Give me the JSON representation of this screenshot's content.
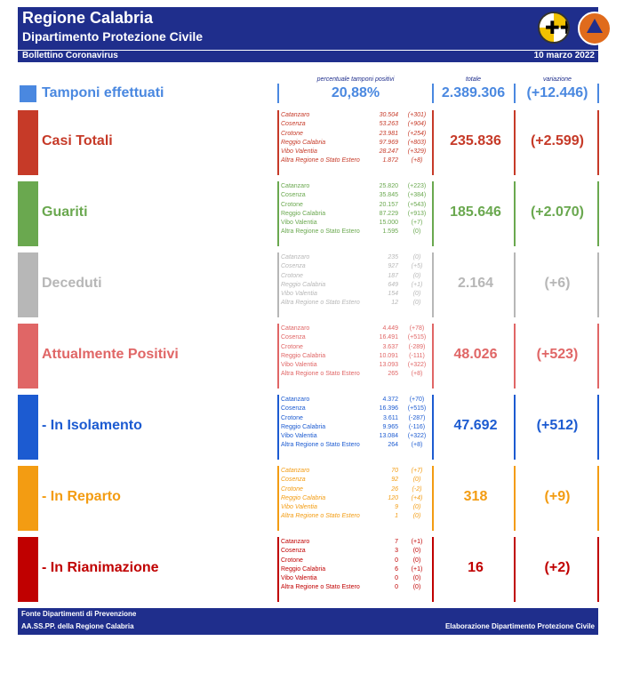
{
  "header": {
    "title": "Regione Calabria",
    "subtitle": "Dipartimento Protezione Civile",
    "bulletin": "Bollettino Coronavirus",
    "date": "10 marzo 2022",
    "logo_calabria_icon": "calabria-coat-of-arms-icon",
    "logo_protezione_icon": "protezione-civile-logo-icon"
  },
  "columns": {
    "pct_label": "percentuale tamponi positivi",
    "total_label": "totale",
    "var_label": "variazione"
  },
  "tamponi": {
    "label": "Tamponi effettuati",
    "pct": "20,88%",
    "total": "2.389.306",
    "var": "(+12.446)",
    "color": "#4a88e0"
  },
  "sections": [
    {
      "title": "Casi Totali",
      "color": "#c63a28",
      "total": "235.836",
      "var": "(+2.599)",
      "rows": [
        {
          "prov": "Catanzaro",
          "num": "30.504",
          "dlt": "(+301)"
        },
        {
          "prov": "Cosenza",
          "num": "53.263",
          "dlt": "(+904)"
        },
        {
          "prov": "Crotone",
          "num": "23.981",
          "dlt": "(+254)"
        },
        {
          "prov": "Reggio Calabria",
          "num": "97.969",
          "dlt": "(+803)"
        },
        {
          "prov": "Vibo Valentia",
          "num": "28.247",
          "dlt": "(+329)"
        },
        {
          "prov": "Altra Regione o Stato Estero",
          "num": "1.872",
          "dlt": "(+8)"
        }
      ]
    },
    {
      "title": "Guariti",
      "color": "#6aa84f",
      "total": "185.646",
      "var": "(+2.070)",
      "rows": [
        {
          "prov": "Catanzaro",
          "num": "25.820",
          "dlt": "(+223)"
        },
        {
          "prov": "Cosenza",
          "num": "35.845",
          "dlt": "(+384)"
        },
        {
          "prov": "Crotone",
          "num": "20.157",
          "dlt": "(+543)"
        },
        {
          "prov": "Reggio Calabria",
          "num": "87.229",
          "dlt": "(+913)"
        },
        {
          "prov": "Vibo Valentia",
          "num": "15.000",
          "dlt": "(+7)"
        },
        {
          "prov": "Altra Regione o Stato Estero",
          "num": "1.595",
          "dlt": "(0)"
        }
      ]
    },
    {
      "title": "Deceduti",
      "color": "#b7b7b7",
      "total": "2.164",
      "var": "(+6)",
      "rows": [
        {
          "prov": "Catanzaro",
          "num": "235",
          "dlt": "(0)"
        },
        {
          "prov": "Cosenza",
          "num": "927",
          "dlt": "(+5)"
        },
        {
          "prov": "Crotone",
          "num": "187",
          "dlt": "(0)"
        },
        {
          "prov": "Reggio Calabria",
          "num": "649",
          "dlt": "(+1)"
        },
        {
          "prov": "Vibo Valentia",
          "num": "154",
          "dlt": "(0)"
        },
        {
          "prov": "Altra Regione o Stato Estero",
          "num": "12",
          "dlt": "(0)"
        }
      ]
    },
    {
      "title": "Attualmente Positivi",
      "color": "#e06666",
      "total": "48.026",
      "var": "(+523)",
      "rows": [
        {
          "prov": "Catanzaro",
          "num": "4.449",
          "dlt": "(+78)"
        },
        {
          "prov": "Cosenza",
          "num": "16.491",
          "dlt": "(+515)"
        },
        {
          "prov": "Crotone",
          "num": "3.637",
          "dlt": "(-289)"
        },
        {
          "prov": "Reggio Calabria",
          "num": "10.091",
          "dlt": "(-111)"
        },
        {
          "prov": "Vibo Valentia",
          "num": "13.093",
          "dlt": "(+322)"
        },
        {
          "prov": "Altra Regione o Stato Estero",
          "num": "265",
          "dlt": "(+8)"
        }
      ]
    },
    {
      "title": "- In Isolamento",
      "color": "#1c5bd1",
      "total": "47.692",
      "var": "(+512)",
      "rows": [
        {
          "prov": "Catanzaro",
          "num": "4.372",
          "dlt": "(+70)"
        },
        {
          "prov": "Cosenza",
          "num": "16.396",
          "dlt": "(+515)"
        },
        {
          "prov": "Crotone",
          "num": "3.611",
          "dlt": "(-287)"
        },
        {
          "prov": "Reggio Calabria",
          "num": "9.965",
          "dlt": "(-116)"
        },
        {
          "prov": "Vibo Valentia",
          "num": "13.084",
          "dlt": "(+322)"
        },
        {
          "prov": "Altra Regione o Stato Estero",
          "num": "264",
          "dlt": "(+8)"
        }
      ]
    },
    {
      "title": "- In Reparto",
      "color": "#f39c12",
      "total": "318",
      "var": "(+9)",
      "rows": [
        {
          "prov": "Catanzaro",
          "num": "70",
          "dlt": "(+7)"
        },
        {
          "prov": "Cosenza",
          "num": "92",
          "dlt": "(0)"
        },
        {
          "prov": "Crotone",
          "num": "26",
          "dlt": "(-2)"
        },
        {
          "prov": "Reggio Calabria",
          "num": "120",
          "dlt": "(+4)"
        },
        {
          "prov": "Vibo Valentia",
          "num": "9",
          "dlt": "(0)"
        },
        {
          "prov": "Altra Regione o Stato Estero",
          "num": "1",
          "dlt": "(0)"
        }
      ]
    },
    {
      "title": "- In Rianimazione",
      "color": "#c00000",
      "total": "16",
      "var": "(+2)",
      "rows": [
        {
          "prov": "Catanzaro",
          "num": "7",
          "dlt": "(+1)"
        },
        {
          "prov": "Cosenza",
          "num": "3",
          "dlt": "(0)"
        },
        {
          "prov": "Crotone",
          "num": "0",
          "dlt": "(0)"
        },
        {
          "prov": "Reggio Calabria",
          "num": "6",
          "dlt": "(+1)"
        },
        {
          "prov": "Vibo Valentia",
          "num": "0",
          "dlt": "(0)"
        },
        {
          "prov": "Altra Regione o Stato Estero",
          "num": "0",
          "dlt": "(0)"
        }
      ]
    }
  ],
  "footer": {
    "source_line1": "Fonte Dipartimenti di Prevenzione",
    "source_line2": "AA.SS.PP.  della Regione Calabria",
    "credit": "Elaborazione Dipartimento Protezione Civile"
  }
}
